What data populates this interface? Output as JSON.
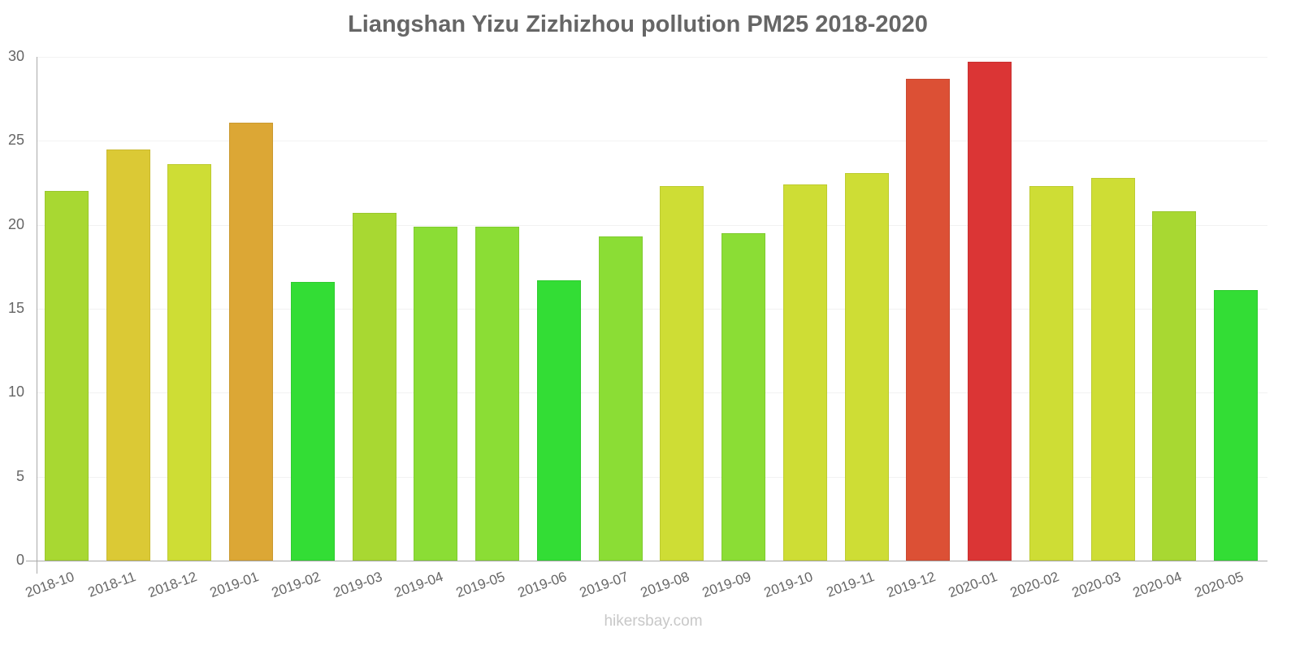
{
  "chart_data": {
    "type": "bar",
    "title": "Liangshan Yizu Zizhizhou pollution PM25 2018-2020",
    "xlabel": "",
    "ylabel": "",
    "ylim": [
      0,
      30
    ],
    "yticks": [
      0,
      5,
      10,
      15,
      20,
      25,
      30
    ],
    "grid": true,
    "legend": null,
    "categories": [
      "2018-10",
      "2018-11",
      "2018-12",
      "2019-01",
      "2019-02",
      "2019-03",
      "2019-04",
      "2019-05",
      "2019-06",
      "2019-07",
      "2019-08",
      "2019-09",
      "2019-10",
      "2019-11",
      "2019-12",
      "2020-01",
      "2020-02",
      "2020-03",
      "2020-04",
      "2020-05"
    ],
    "values": [
      22.0,
      24.5,
      23.6,
      26.1,
      16.6,
      20.7,
      19.9,
      19.9,
      16.7,
      19.3,
      22.3,
      19.5,
      22.4,
      23.1,
      28.7,
      29.7,
      22.3,
      22.8,
      20.8,
      16.1
    ],
    "colors": [
      "#a8d832",
      "#dbc935",
      "#cedd35",
      "#dca735",
      "#33dd35",
      "#a8d832",
      "#8bdd35",
      "#8bdd35",
      "#33dd35",
      "#8bdd35",
      "#cedd35",
      "#8bdd35",
      "#cedd35",
      "#cedd35",
      "#dc5035",
      "#db3535",
      "#cedd35",
      "#cedd35",
      "#a8d832",
      "#33dd35"
    ]
  },
  "footer": {
    "watermark": "hikersbay.com"
  }
}
